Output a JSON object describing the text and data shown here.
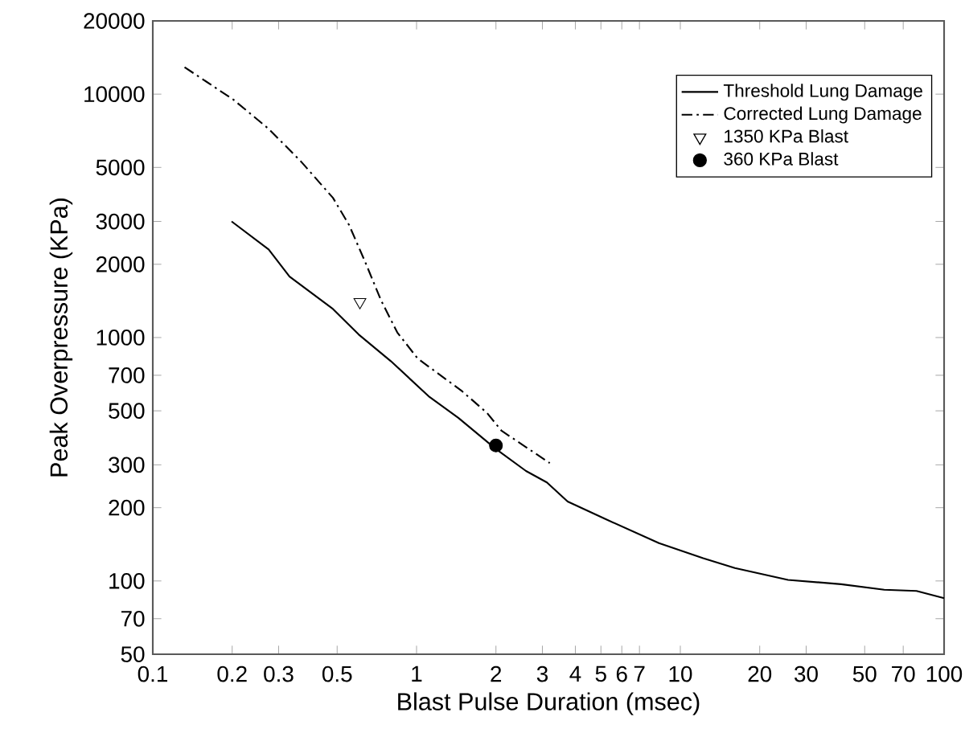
{
  "chart_data": {
    "type": "line",
    "xlabel": "Blast Pulse Duration (msec)",
    "ylabel": "Peak Overpressure (KPa)",
    "log": "xy",
    "xlim": [
      0.1,
      100
    ],
    "ylim": [
      50,
      20000
    ],
    "xticks": [
      0.1,
      0.2,
      0.3,
      0.5,
      1,
      2,
      3,
      4,
      5,
      6,
      7,
      10,
      20,
      30,
      50,
      70,
      100
    ],
    "yticks": [
      50,
      70,
      100,
      200,
      300,
      500,
      700,
      1000,
      2000,
      3000,
      5000,
      10000,
      20000
    ],
    "grid": false,
    "legend": "top right",
    "series": [
      {
        "name": "Threshold Lung Damage",
        "line_style": "solid",
        "color": "#000000",
        "x": [
          0.199,
          0.275,
          0.33,
          0.482,
          0.603,
          0.799,
          1.12,
          1.44,
          1.99,
          2.6,
          3.12,
          3.74,
          5.24,
          8.3,
          12.2,
          16.1,
          25.6,
          40.7,
          59.3,
          78.6,
          100
        ],
        "values": [
          3000,
          2300,
          1780,
          1310,
          1030,
          800,
          570,
          468,
          350,
          283,
          254,
          212,
          179,
          143,
          124,
          113,
          101,
          97,
          92,
          91,
          85
        ]
      },
      {
        "name": "Corrected Lung Damage",
        "line_style": "dashdot",
        "color": "#000000",
        "x": [
          0.132,
          0.202,
          0.275,
          0.364,
          0.482,
          0.555,
          0.638,
          0.734,
          0.845,
          1.01,
          1.48,
          1.85,
          2.1,
          3.2
        ],
        "values": [
          12900,
          9500,
          7200,
          5300,
          3750,
          2900,
          2050,
          1420,
          1050,
          820,
          605,
          490,
          414,
          305
        ]
      },
      {
        "name": "1350 KPa Blast",
        "type": "scatter",
        "marker": "triangle",
        "color": "#000000",
        "x": [
          0.61
        ],
        "values": [
          1400
        ]
      },
      {
        "name": "360 KPa Blast",
        "type": "scatter",
        "marker": "circle",
        "color": "#000000",
        "x": [
          2
        ],
        "values": [
          360
        ]
      }
    ]
  }
}
